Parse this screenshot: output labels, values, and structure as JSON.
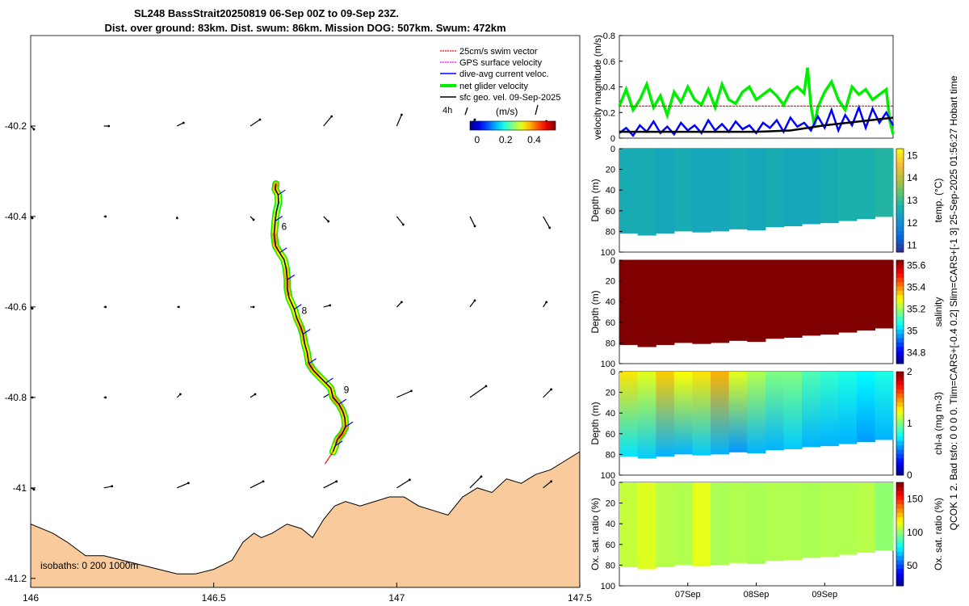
{
  "title": {
    "line1": "SL248 BassStrait20250819 06-Sep 00Z to 09-Sep 23Z.",
    "line2": "Dist. over ground: 83km. Dist. swum: 86km. Mission DOG: 507km. Swum: 472km"
  },
  "side_label": "QCOK 1  2. Bad tsfo: 0  0  0  0. Tlim=CARS+[-0.4 0.2] Slim=CARS+[-1 3] 25-Sep-2025 01:56:27 Hobart time",
  "colors": {
    "land": "#f9cb9c",
    "swim": "#ff0000",
    "gps": "#ff00ff",
    "dive": "#0000ff",
    "net": "#00ee00",
    "geo": "#000000",
    "salinity": "#a50f0f",
    "vel_ref": "#ff0000"
  },
  "chart_data": [
    {
      "type": "scatter",
      "name": "map",
      "xlim": [
        146,
        147.5
      ],
      "ylim": [
        -41.22,
        -40.0
      ],
      "x_ticks": [
        "146",
        "146.5",
        "147",
        "147.5"
      ],
      "x_tick_values": [
        146,
        146.5,
        147,
        147.5
      ],
      "y_ticks": [
        "-40.2",
        "-40.4",
        "-40.6",
        "-40.8",
        "-41",
        "-41.2"
      ],
      "y_tick_values": [
        -40.2,
        -40.4,
        -40.6,
        -40.8,
        -41.0,
        -41.2
      ],
      "legend": [
        "25cm/s swim vector",
        "GPS surface velocity",
        "dive-avg current veloc.",
        "net glider velocity",
        "sfc geo. vel. 09-Sep-2025"
      ],
      "legend_placement": "top-right",
      "scale_label": "4h",
      "colorbar": {
        "label": "(m/s)",
        "ticks": [
          "0",
          "0.2",
          "0.4"
        ],
        "tick_values": [
          0,
          0.2,
          0.4
        ],
        "range": [
          -0.05,
          0.55
        ]
      },
      "isobath_label": "isobaths: 0   200  1000m",
      "day_labels": [
        {
          "text": "6",
          "lon": 146.685,
          "lat": -40.43
        },
        {
          "text": "8",
          "lon": 146.74,
          "lat": -40.615
        },
        {
          "text": "9",
          "lon": 146.855,
          "lat": -40.79
        }
      ],
      "track": {
        "lon": [
          146.67,
          146.668,
          146.676,
          146.677,
          146.671,
          146.668,
          146.665,
          146.669,
          146.68,
          146.692,
          146.698,
          146.701,
          146.701,
          146.706,
          146.72,
          146.727,
          146.738,
          146.744,
          146.748,
          146.755,
          146.76,
          146.772,
          146.79,
          146.806,
          146.82,
          146.826,
          146.842,
          146.852,
          146.858,
          146.86,
          146.851,
          146.838,
          146.832,
          146.826
        ],
        "lat": [
          -40.328,
          -40.34,
          -40.352,
          -40.37,
          -40.39,
          -40.41,
          -40.44,
          -40.465,
          -40.48,
          -40.495,
          -40.515,
          -40.54,
          -40.56,
          -40.58,
          -40.605,
          -40.625,
          -40.645,
          -40.66,
          -40.68,
          -40.7,
          -40.725,
          -40.74,
          -40.755,
          -40.768,
          -40.78,
          -40.8,
          -40.815,
          -40.83,
          -40.845,
          -40.865,
          -40.88,
          -40.893,
          -40.907,
          -40.92
        ],
        "speed": [
          0.38,
          0.36,
          0.32,
          0.26,
          0.3,
          0.34,
          0.38,
          0.36,
          0.33,
          0.3,
          0.36,
          0.38,
          0.37,
          0.33,
          0.32,
          0.36,
          0.38,
          0.36,
          0.34,
          0.35,
          0.38,
          0.36,
          0.34,
          0.33,
          0.35,
          0.38,
          0.37,
          0.36,
          0.35,
          0.38,
          0.4,
          0.37,
          0.33,
          0.32
        ]
      },
      "geo_vectors": {
        "lon": [
          146.0,
          146.2,
          146.4,
          146.6,
          146.8,
          147.0,
          147.2,
          147.4
        ],
        "lat": [
          -40.2,
          -40.4,
          -40.6,
          -40.8,
          -41.0
        ],
        "u": [
          [
            0.02,
            0.03,
            0.04,
            0.06,
            0.05,
            0.03,
            0.03,
            0.02
          ],
          [
            0.01,
            0.01,
            0.0,
            0.02,
            0.03,
            0.04,
            0.03,
            0.04
          ],
          [
            0.01,
            0.01,
            0.01,
            0.02,
            0.04,
            0.03,
            0.03,
            0.02
          ],
          [
            0.01,
            0.01,
            0.02,
            0.03,
            0.05,
            0.09,
            0.1,
            0.05
          ],
          [
            0.02,
            0.05,
            0.07,
            0.08,
            0.08,
            0.08,
            0.07,
            0.05
          ]
        ],
        "v": [
          [
            -0.02,
            0.0,
            0.02,
            0.04,
            0.06,
            0.07,
            0.04,
            0.03
          ],
          [
            -0.01,
            0.0,
            -0.01,
            -0.02,
            -0.03,
            -0.05,
            -0.06,
            -0.07
          ],
          [
            -0.01,
            0.0,
            0.0,
            0.0,
            0.01,
            0.03,
            0.04,
            0.03
          ],
          [
            0.0,
            0.0,
            0.02,
            0.02,
            0.03,
            0.04,
            0.07,
            0.05
          ],
          [
            -0.01,
            0.01,
            0.03,
            0.04,
            0.04,
            0.05,
            0.07,
            0.04
          ]
        ]
      },
      "coast": {
        "lon": [
          146.0,
          146.03,
          146.06,
          146.1,
          146.15,
          146.2,
          146.25,
          146.3,
          146.35,
          146.4,
          146.45,
          146.5,
          146.55,
          146.58,
          146.61,
          146.63,
          146.66,
          146.7,
          146.74,
          146.77,
          146.8,
          146.83,
          146.86,
          146.9,
          146.94,
          146.98,
          147.02,
          147.06,
          147.1,
          147.14,
          147.18,
          147.22,
          147.26,
          147.3,
          147.34,
          147.38,
          147.42,
          147.46,
          147.5
        ],
        "lat": [
          -41.08,
          -41.09,
          -41.1,
          -41.12,
          -41.15,
          -41.15,
          -41.16,
          -41.17,
          -41.18,
          -41.19,
          -41.19,
          -41.18,
          -41.16,
          -41.12,
          -41.1,
          -41.11,
          -41.1,
          -41.08,
          -41.09,
          -41.11,
          -41.07,
          -41.04,
          -41.03,
          -41.04,
          -41.03,
          -41.02,
          -41.02,
          -41.04,
          -41.05,
          -41.06,
          -41.02,
          -41.0,
          -41.01,
          -40.98,
          -40.99,
          -40.97,
          -40.96,
          -40.94,
          -40.92
        ]
      }
    },
    {
      "type": "line",
      "name": "velocity",
      "ylabel": "velocity magnitude (m/s)",
      "ylim": [
        0,
        0.8
      ],
      "y_ticks": [
        "0",
        "0.2",
        "0.4",
        "0.6",
        "0.8"
      ],
      "y_tick_values": [
        0,
        0.2,
        0.4,
        0.6,
        0.8
      ],
      "x_range_days": [
        0,
        4
      ],
      "series": [
        {
          "name": "net glider velocity",
          "color": "#00ee00",
          "x": [
            0,
            0.1,
            0.2,
            0.3,
            0.4,
            0.5,
            0.6,
            0.7,
            0.8,
            0.9,
            1.0,
            1.1,
            1.2,
            1.3,
            1.4,
            1.5,
            1.6,
            1.7,
            1.8,
            1.9,
            2.0,
            2.1,
            2.2,
            2.3,
            2.4,
            2.5,
            2.6,
            2.7,
            2.75,
            2.8,
            2.85,
            2.9,
            3.0,
            3.1,
            3.2,
            3.3,
            3.4,
            3.5,
            3.6,
            3.7,
            3.8,
            3.9,
            3.95,
            4.0
          ],
          "values": [
            0.25,
            0.38,
            0.22,
            0.3,
            0.42,
            0.24,
            0.33,
            0.18,
            0.36,
            0.28,
            0.4,
            0.3,
            0.26,
            0.38,
            0.24,
            0.42,
            0.3,
            0.27,
            0.36,
            0.4,
            0.3,
            0.34,
            0.38,
            0.33,
            0.26,
            0.36,
            0.4,
            0.35,
            0.55,
            0.25,
            0.1,
            0.24,
            0.36,
            0.44,
            0.3,
            0.22,
            0.4,
            0.34,
            0.38,
            0.3,
            0.34,
            0.38,
            0.14,
            0.03
          ]
        },
        {
          "name": "dive-avg current veloc.",
          "color": "#0000ff",
          "x": [
            0,
            0.1,
            0.2,
            0.3,
            0.4,
            0.5,
            0.6,
            0.7,
            0.8,
            0.9,
            1.0,
            1.1,
            1.2,
            1.3,
            1.4,
            1.5,
            1.6,
            1.7,
            1.8,
            1.9,
            2.0,
            2.1,
            2.2,
            2.3,
            2.4,
            2.5,
            2.6,
            2.7,
            2.8,
            2.9,
            3.0,
            3.1,
            3.2,
            3.3,
            3.4,
            3.5,
            3.6,
            3.7,
            3.8,
            3.9,
            4.0
          ],
          "values": [
            0.04,
            0.08,
            0.02,
            0.1,
            0.05,
            0.13,
            0.04,
            0.09,
            0.03,
            0.12,
            0.06,
            0.1,
            0.04,
            0.14,
            0.06,
            0.11,
            0.05,
            0.13,
            0.07,
            0.1,
            0.04,
            0.12,
            0.08,
            0.14,
            0.05,
            0.16,
            0.09,
            0.12,
            0.06,
            0.17,
            0.08,
            0.22,
            0.06,
            0.18,
            0.1,
            0.24,
            0.08,
            0.23,
            0.12,
            0.2,
            0.1
          ]
        },
        {
          "name": "sfc geo. vel.",
          "color": "#000000",
          "x": [
            0,
            0.5,
            1.0,
            1.5,
            2.0,
            2.5,
            3.0,
            3.5,
            4.0
          ],
          "values": [
            0.05,
            0.05,
            0.05,
            0.05,
            0.05,
            0.06,
            0.1,
            0.13,
            0.16
          ]
        },
        {
          "name": "25cm/s swim vector",
          "color": "#ff0000",
          "x": [
            0,
            4
          ],
          "values": [
            0.25,
            0.25
          ]
        }
      ]
    },
    {
      "type": "heatmap",
      "name": "temperature",
      "ylabel": "Depth (m)",
      "ylim": [
        100,
        0
      ],
      "y_ticks": [
        "0",
        "20",
        "40",
        "60",
        "80",
        "100"
      ],
      "y_tick_values": [
        0,
        20,
        40,
        60,
        80,
        100
      ],
      "colorbar": {
        "label": "temp. (°C)",
        "ticks": [
          "11",
          "12",
          "13",
          "14",
          "15"
        ],
        "tick_values": [
          11,
          12,
          13,
          14,
          15
        ],
        "range": [
          10.7,
          15.3
        ]
      },
      "values": [
        12.6,
        12.6,
        12.5,
        12.6,
        12.5,
        12.5,
        12.6,
        12.5,
        12.6,
        12.5,
        12.5,
        12.6,
        12.7,
        12.7,
        12.8
      ],
      "bottom_depth": [
        82,
        84,
        82,
        80,
        81,
        80,
        78,
        79,
        76,
        75,
        73,
        72,
        70,
        68,
        66
      ]
    },
    {
      "type": "heatmap",
      "name": "salinity",
      "ylabel": "Depth (m)",
      "ylim": [
        100,
        0
      ],
      "y_ticks": [
        "0",
        "20",
        "40",
        "60",
        "80",
        "100"
      ],
      "y_tick_values": [
        0,
        20,
        40,
        60,
        80,
        100
      ],
      "colorbar": {
        "label": "salinity",
        "ticks": [
          "34.8",
          "35",
          "35.2",
          "35.4",
          "35.6"
        ],
        "tick_values": [
          34.8,
          35.0,
          35.2,
          35.4,
          35.6
        ],
        "range": [
          34.7,
          35.65
        ]
      },
      "values": [
        35.7,
        35.7,
        35.7,
        35.7,
        35.7,
        35.7,
        35.7,
        35.7,
        35.7,
        35.7,
        35.7,
        35.7,
        35.7,
        35.7,
        35.7
      ],
      "bottom_depth": [
        82,
        84,
        82,
        80,
        81,
        80,
        78,
        79,
        76,
        75,
        73,
        72,
        70,
        68,
        66
      ]
    },
    {
      "type": "heatmap",
      "name": "chlorophyll",
      "ylabel": "Depth (m)",
      "ylim": [
        100,
        0
      ],
      "y_ticks": [
        "0",
        "20",
        "40",
        "60",
        "80",
        "100"
      ],
      "y_tick_values": [
        0,
        20,
        40,
        60,
        80,
        100
      ],
      "colorbar": {
        "label": "chl-a  (mg m-3)",
        "ticks": [
          "0",
          "1",
          "2"
        ],
        "tick_values": [
          0,
          1,
          2
        ],
        "range": [
          0,
          2
        ]
      },
      "top_values": [
        1.3,
        1.2,
        1.35,
        1.25,
        1.3,
        1.4,
        1.2,
        1.1,
        1.0,
        1.0,
        0.9,
        0.85,
        0.8,
        0.75,
        0.8
      ],
      "bottom_values": [
        0.7,
        0.65,
        0.6,
        0.6,
        0.65,
        0.6,
        0.55,
        0.6,
        0.6,
        0.65,
        0.6,
        0.6,
        0.6,
        0.55,
        0.6
      ],
      "bottom_depth": [
        82,
        84,
        82,
        80,
        81,
        80,
        78,
        79,
        76,
        75,
        73,
        72,
        70,
        68,
        66
      ]
    },
    {
      "type": "heatmap",
      "name": "oxygen",
      "ylabel": "Ox. sat. ratio (%)",
      "ylim": [
        100,
        0
      ],
      "y_ticks": [
        "0",
        "20",
        "40",
        "60",
        "80",
        "100"
      ],
      "y_tick_values": [
        0,
        20,
        40,
        60,
        80,
        100
      ],
      "x_ticks": [
        "07Sep",
        "08Sep",
        "09Sep"
      ],
      "x_tick_values": [
        1,
        2,
        3
      ],
      "colorbar": {
        "label": "Ox. sat. ratio (%)",
        "ticks": [
          "50",
          "100",
          "150"
        ],
        "tick_values": [
          50,
          100,
          150
        ],
        "range": [
          20,
          175
        ]
      },
      "values": [
        108,
        112,
        106,
        105,
        113,
        104,
        105,
        104,
        105,
        105,
        104,
        105,
        105,
        106,
        100
      ],
      "bottom_depth": [
        82,
        84,
        82,
        80,
        81,
        80,
        78,
        79,
        76,
        75,
        73,
        72,
        70,
        68,
        66
      ]
    }
  ]
}
